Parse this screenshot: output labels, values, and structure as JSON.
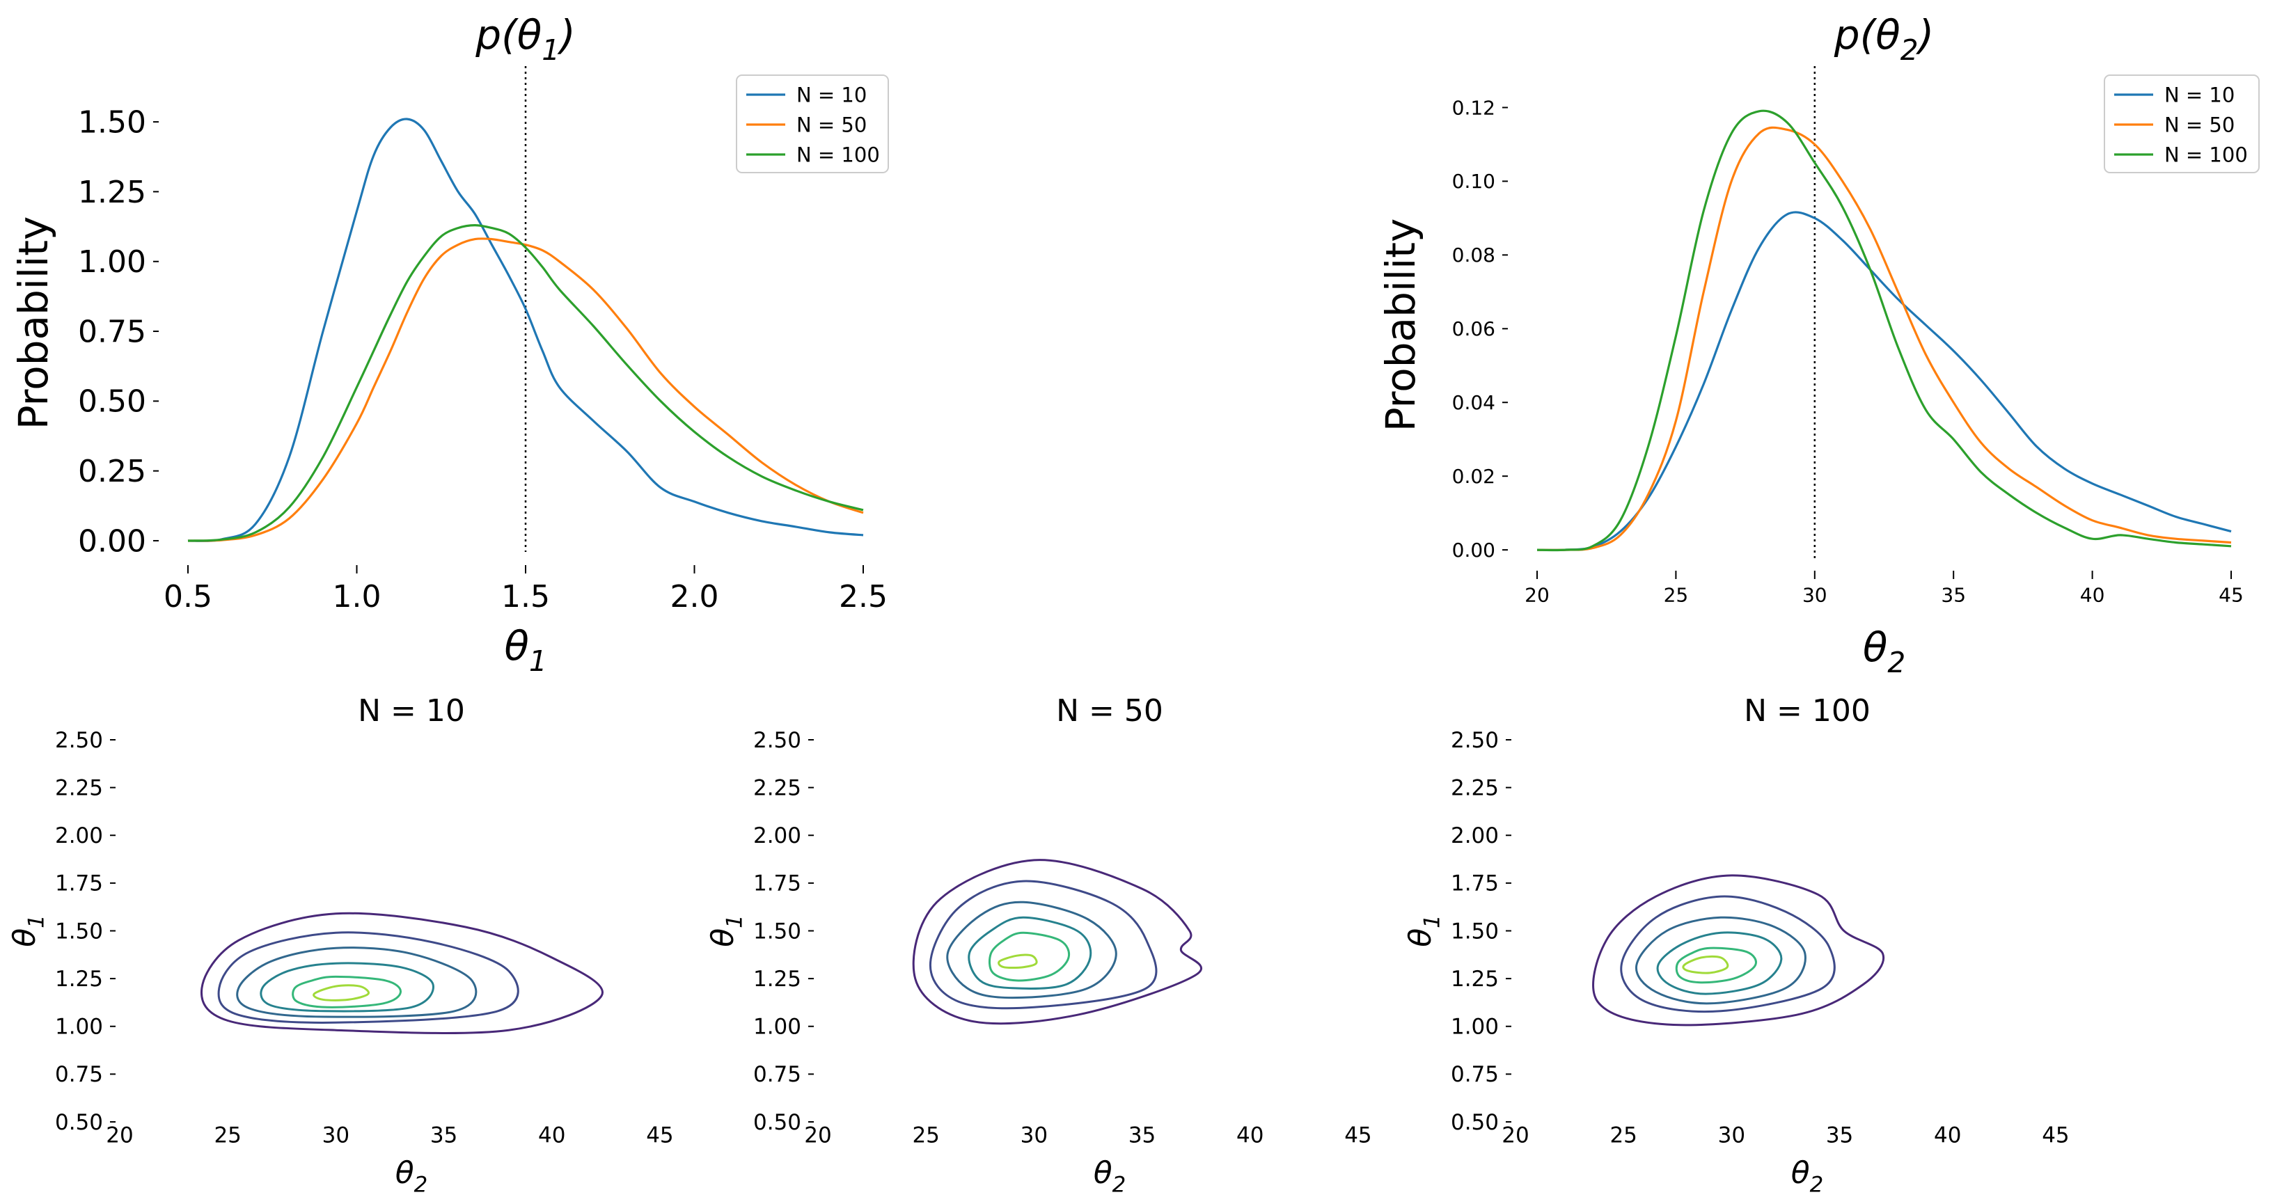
{
  "figure": {
    "legend_names": [
      "N = 10",
      "N = 50",
      "N = 100"
    ],
    "colors": {
      "N = 10": "#1f77b4",
      "N = 50": "#ff7f0e",
      "N = 100": "#2ca02c",
      "reference_line": "#000000",
      "contour_levels": [
        "#482878",
        "#3e4a89",
        "#31688e",
        "#26828e",
        "#35b779",
        "#a0da39"
      ]
    }
  },
  "chart_data": [
    {
      "id": "p_theta1",
      "type": "line",
      "title": "p(θ₁)",
      "title_main": "p(θ",
      "title_sub": "1",
      "title_close": ")",
      "xlabel": "θ",
      "xlabel_sub": "1",
      "ylabel": "Probability",
      "xlim": [
        0.5,
        2.5
      ],
      "ylim": [
        -0.04,
        1.6
      ],
      "xticks": [
        0.5,
        1.0,
        1.5,
        2.0,
        2.5
      ],
      "xtick_labels": [
        "0.5",
        "1.0",
        "1.5",
        "2.0",
        "2.5"
      ],
      "yticks": [
        0.0,
        0.25,
        0.5,
        0.75,
        1.0,
        1.25,
        1.5
      ],
      "ytick_labels": [
        "0.00",
        "0.25",
        "0.50",
        "0.75",
        "1.00",
        "1.25",
        "1.50"
      ],
      "reference_x": 1.5,
      "legend": {
        "location": "upper right",
        "entries": [
          "N = 10",
          "N = 50",
          "N = 100"
        ]
      },
      "grid": false,
      "x": [
        0.5,
        0.6,
        0.7,
        0.8,
        0.9,
        1.0,
        1.05,
        1.1,
        1.15,
        1.2,
        1.25,
        1.3,
        1.35,
        1.4,
        1.45,
        1.5,
        1.55,
        1.6,
        1.7,
        1.8,
        1.9,
        2.0,
        2.1,
        2.2,
        2.3,
        2.4,
        2.5
      ],
      "series": [
        {
          "name": "N = 10",
          "values": [
            0.0,
            0.005,
            0.06,
            0.3,
            0.75,
            1.18,
            1.38,
            1.48,
            1.51,
            1.47,
            1.36,
            1.25,
            1.17,
            1.06,
            0.95,
            0.83,
            0.68,
            0.55,
            0.43,
            0.32,
            0.19,
            0.14,
            0.1,
            0.07,
            0.05,
            0.03,
            0.02
          ]
        },
        {
          "name": "N = 50",
          "values": [
            0.0,
            0.002,
            0.02,
            0.08,
            0.22,
            0.42,
            0.55,
            0.68,
            0.82,
            0.94,
            1.02,
            1.06,
            1.08,
            1.08,
            1.07,
            1.06,
            1.04,
            1.0,
            0.9,
            0.76,
            0.6,
            0.48,
            0.38,
            0.28,
            0.2,
            0.14,
            0.1
          ]
        },
        {
          "name": "N = 100",
          "values": [
            0.0,
            0.004,
            0.03,
            0.12,
            0.3,
            0.55,
            0.68,
            0.81,
            0.93,
            1.02,
            1.09,
            1.12,
            1.13,
            1.12,
            1.1,
            1.05,
            0.98,
            0.9,
            0.77,
            0.63,
            0.5,
            0.39,
            0.3,
            0.23,
            0.18,
            0.14,
            0.11
          ]
        }
      ]
    },
    {
      "id": "p_theta2",
      "type": "line",
      "title": "p(θ₂)",
      "title_main": "p(θ",
      "title_sub": "2",
      "title_close": ")",
      "xlabel": "θ",
      "xlabel_sub": "2",
      "ylabel": "Probability",
      "xlim": [
        20,
        45
      ],
      "ylim": [
        -0.003,
        0.125
      ],
      "xticks": [
        20,
        25,
        30,
        35,
        40,
        45
      ],
      "xtick_labels": [
        "20",
        "25",
        "30",
        "35",
        "40",
        "45"
      ],
      "yticks": [
        0.0,
        0.02,
        0.04,
        0.06,
        0.08,
        0.1,
        0.12
      ],
      "ytick_labels": [
        "0.00",
        "0.02",
        "0.04",
        "0.06",
        "0.08",
        "0.10",
        "0.12"
      ],
      "reference_x": 30,
      "legend": {
        "location": "upper right",
        "entries": [
          "N = 10",
          "N = 50",
          "N = 100"
        ]
      },
      "grid": false,
      "x": [
        20,
        21,
        22,
        23,
        24,
        25,
        26,
        27,
        28,
        29,
        30,
        31,
        32,
        33,
        34,
        35,
        36,
        37,
        38,
        39,
        40,
        41,
        42,
        43,
        44,
        45
      ],
      "series": [
        {
          "name": "N = 10",
          "values": [
            0.0,
            0.0,
            0.0008,
            0.005,
            0.014,
            0.028,
            0.045,
            0.065,
            0.082,
            0.091,
            0.09,
            0.084,
            0.076,
            0.068,
            0.061,
            0.054,
            0.046,
            0.037,
            0.028,
            0.022,
            0.018,
            0.015,
            0.012,
            0.009,
            0.007,
            0.005
          ]
        },
        {
          "name": "N = 50",
          "values": [
            0.0,
            0.0,
            0.0005,
            0.004,
            0.015,
            0.035,
            0.07,
            0.1,
            0.113,
            0.114,
            0.11,
            0.1,
            0.087,
            0.07,
            0.053,
            0.04,
            0.029,
            0.022,
            0.017,
            0.012,
            0.008,
            0.006,
            0.004,
            0.003,
            0.0025,
            0.002
          ]
        },
        {
          "name": "N = 100",
          "values": [
            0.0,
            0.0,
            0.001,
            0.008,
            0.028,
            0.058,
            0.092,
            0.113,
            0.119,
            0.116,
            0.105,
            0.093,
            0.076,
            0.055,
            0.038,
            0.03,
            0.021,
            0.015,
            0.01,
            0.006,
            0.003,
            0.004,
            0.003,
            0.002,
            0.0015,
            0.001
          ]
        }
      ]
    },
    {
      "id": "joint_n10",
      "type": "contour",
      "title": "N = 10",
      "xlabel": "θ",
      "xlabel_sub": "2",
      "ylabel": "θ",
      "ylabel_sub": "1",
      "xlim": [
        20,
        47
      ],
      "ylim": [
        0.5,
        2.5
      ],
      "xticks": [
        20,
        25,
        30,
        35,
        40,
        45
      ],
      "xtick_labels": [
        "20",
        "25",
        "30",
        "35",
        "40",
        "45"
      ],
      "yticks": [
        0.5,
        0.75,
        1.0,
        1.25,
        1.5,
        1.75,
        2.0,
        2.25,
        2.5
      ],
      "ytick_labels": [
        "0.50",
        "0.75",
        "1.00",
        "1.25",
        "1.50",
        "1.75",
        "2.00",
        "2.25",
        "2.50"
      ],
      "contours": [
        [
          [
            30,
            1.59
          ],
          [
            36,
            1.52
          ],
          [
            40,
            1.36
          ],
          [
            42.3,
            1.16
          ],
          [
            38,
            0.98
          ],
          [
            30,
            0.98
          ],
          [
            25,
            1.03
          ],
          [
            23.8,
            1.2
          ],
          [
            25.5,
            1.45
          ]
        ],
        [
          [
            30,
            1.49
          ],
          [
            34.5,
            1.44
          ],
          [
            38,
            1.29
          ],
          [
            37.5,
            1.08
          ],
          [
            30,
            1.02
          ],
          [
            25.5,
            1.06
          ],
          [
            24.6,
            1.2
          ],
          [
            26,
            1.39
          ]
        ],
        [
          [
            30,
            1.41
          ],
          [
            33.5,
            1.38
          ],
          [
            36.3,
            1.24
          ],
          [
            35.5,
            1.08
          ],
          [
            29.5,
            1.05
          ],
          [
            26.1,
            1.09
          ],
          [
            25.5,
            1.2
          ],
          [
            27,
            1.34
          ]
        ],
        [
          [
            30,
            1.33
          ],
          [
            33,
            1.31
          ],
          [
            34.5,
            1.22
          ],
          [
            33.5,
            1.1
          ],
          [
            29.5,
            1.08
          ],
          [
            27,
            1.11
          ],
          [
            26.6,
            1.2
          ],
          [
            27.8,
            1.29
          ]
        ],
        [
          [
            30,
            1.26
          ],
          [
            32.3,
            1.24
          ],
          [
            33,
            1.18
          ],
          [
            32.2,
            1.12
          ],
          [
            29.6,
            1.1
          ],
          [
            28.2,
            1.13
          ],
          [
            28.1,
            1.2
          ],
          [
            28.9,
            1.24
          ]
        ],
        [
          [
            30,
            1.21
          ],
          [
            31.1,
            1.21
          ],
          [
            31.5,
            1.17
          ],
          [
            30.6,
            1.14
          ],
          [
            29.4,
            1.14
          ],
          [
            29,
            1.17
          ]
        ]
      ]
    },
    {
      "id": "joint_n50",
      "type": "contour",
      "title": "N = 50",
      "xlabel": "θ",
      "xlabel_sub": "2",
      "ylabel": "θ",
      "ylabel_sub": "1",
      "xlim": [
        20,
        47
      ],
      "ylim": [
        0.5,
        2.5
      ],
      "xticks": [
        20,
        25,
        30,
        35,
        40,
        45
      ],
      "xtick_labels": [
        "20",
        "25",
        "30",
        "35",
        "40",
        "45"
      ],
      "yticks": [
        0.5,
        0.75,
        1.0,
        1.25,
        1.5,
        1.75,
        2.0,
        2.25,
        2.5
      ],
      "ytick_labels": [
        "0.50",
        "0.75",
        "1.00",
        "1.25",
        "1.50",
        "1.75",
        "2.00",
        "2.25",
        "2.50"
      ],
      "contours": [
        [
          [
            30,
            1.87
          ],
          [
            35,
            1.72
          ],
          [
            37.2,
            1.5
          ],
          [
            36.8,
            1.4
          ],
          [
            37.5,
            1.27
          ],
          [
            32,
            1.06
          ],
          [
            27,
            1.03
          ],
          [
            24.5,
            1.25
          ],
          [
            25.5,
            1.65
          ]
        ],
        [
          [
            29.5,
            1.76
          ],
          [
            33.5,
            1.65
          ],
          [
            35.2,
            1.45
          ],
          [
            35.2,
            1.2
          ],
          [
            30,
            1.1
          ],
          [
            26.5,
            1.13
          ],
          [
            25.2,
            1.32
          ],
          [
            26.5,
            1.62
          ]
        ],
        [
          [
            29.5,
            1.65
          ],
          [
            32.5,
            1.56
          ],
          [
            33.8,
            1.38
          ],
          [
            32.5,
            1.2
          ],
          [
            29,
            1.15
          ],
          [
            26.9,
            1.2
          ],
          [
            26,
            1.38
          ],
          [
            27.5,
            1.58
          ]
        ],
        [
          [
            29.5,
            1.57
          ],
          [
            32,
            1.5
          ],
          [
            32.6,
            1.36
          ],
          [
            31.5,
            1.22
          ],
          [
            29,
            1.2
          ],
          [
            27.5,
            1.24
          ],
          [
            27,
            1.38
          ],
          [
            28,
            1.5
          ]
        ],
        [
          [
            29.5,
            1.49
          ],
          [
            31.2,
            1.45
          ],
          [
            31.6,
            1.36
          ],
          [
            30.8,
            1.27
          ],
          [
            29.2,
            1.24
          ],
          [
            28.1,
            1.28
          ],
          [
            28,
            1.38
          ],
          [
            28.6,
            1.45
          ]
        ],
        [
          [
            29.2,
            1.37
          ],
          [
            29.9,
            1.37
          ],
          [
            30.1,
            1.33
          ],
          [
            29.5,
            1.31
          ],
          [
            28.6,
            1.31
          ],
          [
            28.4,
            1.34
          ]
        ]
      ]
    },
    {
      "id": "joint_n100",
      "type": "contour",
      "title": "N = 100",
      "xlabel": "θ",
      "xlabel_sub": "2",
      "ylabel": "θ",
      "ylabel_sub": "1",
      "xlim": [
        20,
        47
      ],
      "ylim": [
        0.5,
        2.5
      ],
      "xticks": [
        20,
        25,
        30,
        35,
        40,
        45
      ],
      "xtick_labels": [
        "20",
        "25",
        "30",
        "35",
        "40",
        "45"
      ],
      "yticks": [
        0.5,
        0.75,
        1.0,
        1.25,
        1.5,
        1.75,
        2.0,
        2.25,
        2.5
      ],
      "ytick_labels": [
        "0.50",
        "0.75",
        "1.00",
        "1.25",
        "1.50",
        "1.75",
        "2.00",
        "2.25",
        "2.50"
      ],
      "contours": [
        [
          [
            30,
            1.79
          ],
          [
            34,
            1.69
          ],
          [
            35.2,
            1.5
          ],
          [
            37,
            1.38
          ],
          [
            36.1,
            1.22
          ],
          [
            33,
            1.06
          ],
          [
            27,
            1.01
          ],
          [
            23.8,
            1.13
          ],
          [
            24.2,
            1.45
          ],
          [
            26.5,
            1.68
          ]
        ],
        [
          [
            29.5,
            1.68
          ],
          [
            32.5,
            1.6
          ],
          [
            34.5,
            1.42
          ],
          [
            34.2,
            1.2
          ],
          [
            29.5,
            1.08
          ],
          [
            26,
            1.13
          ],
          [
            24.9,
            1.32
          ],
          [
            26.5,
            1.57
          ]
        ],
        [
          [
            29.5,
            1.57
          ],
          [
            32,
            1.52
          ],
          [
            33.4,
            1.38
          ],
          [
            32.5,
            1.2
          ],
          [
            29,
            1.12
          ],
          [
            26.5,
            1.18
          ],
          [
            25.6,
            1.32
          ],
          [
            27,
            1.5
          ]
        ],
        [
          [
            29.5,
            1.49
          ],
          [
            31.5,
            1.46
          ],
          [
            32.3,
            1.35
          ],
          [
            31.3,
            1.22
          ],
          [
            28.8,
            1.17
          ],
          [
            27.1,
            1.22
          ],
          [
            26.6,
            1.32
          ],
          [
            27.7,
            1.43
          ]
        ],
        [
          [
            29,
            1.41
          ],
          [
            30.7,
            1.39
          ],
          [
            31.1,
            1.32
          ],
          [
            30.1,
            1.25
          ],
          [
            28.5,
            1.23
          ],
          [
            27.6,
            1.26
          ],
          [
            27.5,
            1.33
          ],
          [
            28.1,
            1.38
          ]
        ],
        [
          [
            28.6,
            1.36
          ],
          [
            29.5,
            1.36
          ],
          [
            29.8,
            1.31
          ],
          [
            29,
            1.28
          ],
          [
            28,
            1.29
          ],
          [
            27.8,
            1.32
          ]
        ]
      ]
    }
  ]
}
